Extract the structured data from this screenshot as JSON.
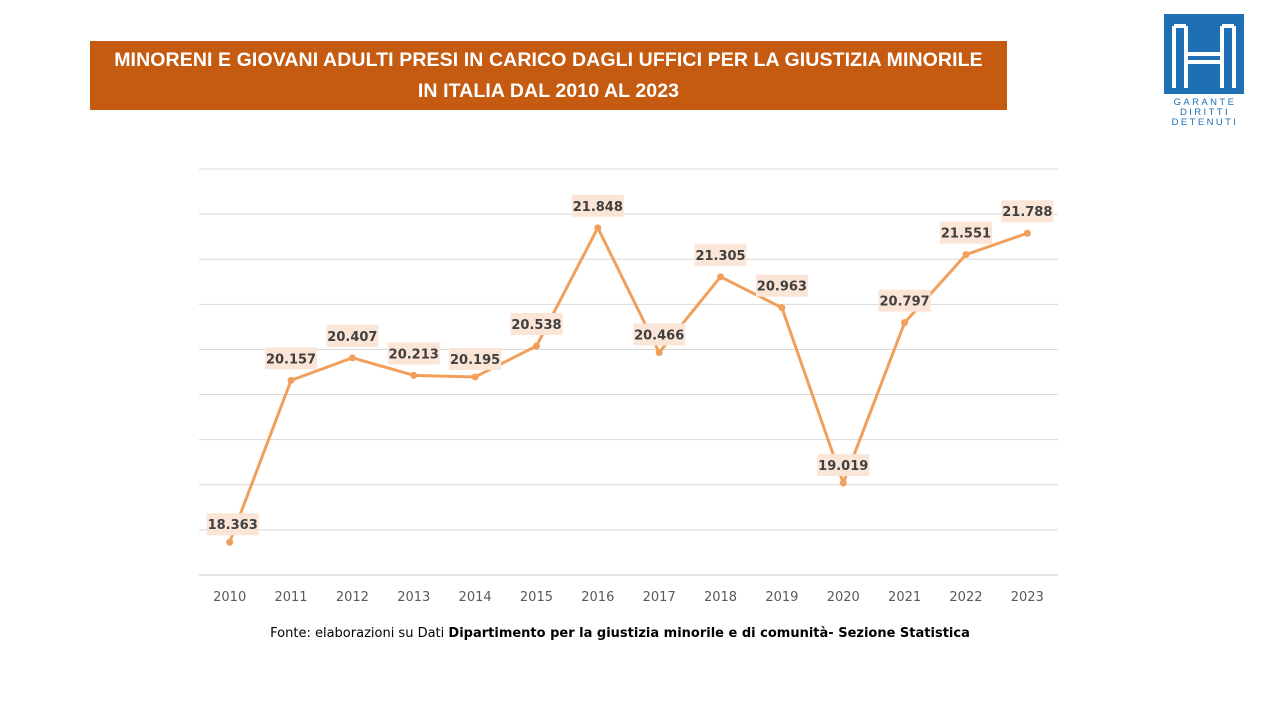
{
  "title": {
    "line1": "MINORENI E GIOVANI ADULTI PRESI IN CARICO DAGLI UFFICI PER LA GIUSTIZIA MINORILE",
    "line2": "IN ITALIA DAL 2010 AL 2023"
  },
  "logo": {
    "line1": "GARANTE",
    "line2": "DIRITTI",
    "line3": "DETENUTI",
    "color": "#1f6fb5"
  },
  "source": {
    "prefix": "Fonte:  elaborazioni su Dati ",
    "bold": "Dipartimento per la giustizia minorile e di comunità- Sezione Statistica"
  },
  "chart_data": {
    "type": "line",
    "categories": [
      "2010",
      "2011",
      "2012",
      "2013",
      "2014",
      "2015",
      "2016",
      "2017",
      "2018",
      "2019",
      "2020",
      "2021",
      "2022",
      "2023"
    ],
    "values": [
      18363,
      20157,
      20407,
      20213,
      20195,
      20538,
      21848,
      20466,
      21305,
      20963,
      19019,
      20797,
      21551,
      21788
    ],
    "data_labels": [
      "18.363",
      "20.157",
      "20.407",
      "20.213",
      "20.195",
      "20.538",
      "21.848",
      "20.466",
      "21.305",
      "20.963",
      "19.019",
      "20.797",
      "21.551",
      "21.788"
    ],
    "ylim": [
      18000,
      22500
    ],
    "gridlines": true,
    "y_axis_labels_shown": false,
    "line_color": "#f0a05a",
    "label_bg": "#fbe5d6",
    "title_bg": "#c55a11"
  }
}
